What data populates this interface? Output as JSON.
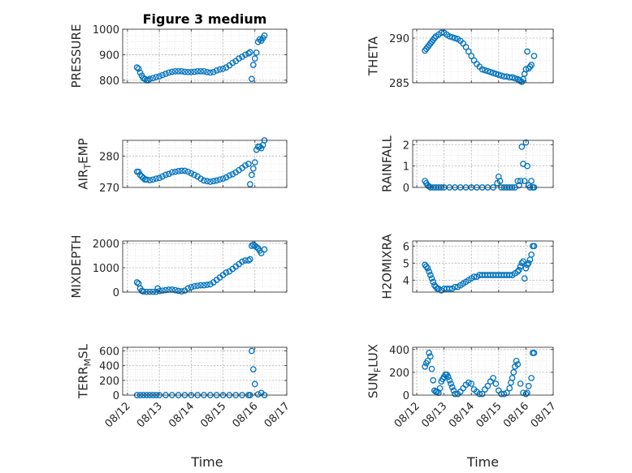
{
  "figure": {
    "title": "Figure 3 medium",
    "xlabel": "Time",
    "marker_color": "#0072BD",
    "x_ticks": [
      "08/12",
      "08/13",
      "08/14",
      "08/15",
      "08/16",
      "08/17"
    ]
  },
  "chart_data": [
    {
      "type": "scatter",
      "ylabel": "PRESSURE",
      "ylim": [
        790,
        1000
      ],
      "yticks": [
        800,
        900,
        1000
      ],
      "grid": true,
      "x": [
        12.3,
        12.35,
        12.4,
        12.45,
        12.5,
        12.55,
        12.6,
        12.65,
        12.7,
        12.8,
        12.9,
        13.0,
        13.1,
        13.2,
        13.3,
        13.4,
        13.5,
        13.6,
        13.7,
        13.8,
        13.9,
        14.0,
        14.1,
        14.2,
        14.3,
        14.4,
        14.5,
        14.6,
        14.7,
        14.8,
        14.9,
        15.0,
        15.1,
        15.2,
        15.3,
        15.4,
        15.5,
        15.6,
        15.7,
        15.8,
        15.85,
        15.9,
        15.95,
        16.0,
        16.05,
        16.1,
        16.15,
        16.2,
        16.25,
        16.3
      ],
      "y": [
        850,
        845,
        830,
        818,
        808,
        805,
        800,
        800,
        805,
        808,
        812,
        815,
        820,
        825,
        830,
        833,
        835,
        835,
        835,
        833,
        832,
        832,
        833,
        835,
        835,
        835,
        832,
        830,
        832,
        838,
        842,
        845,
        850,
        858,
        868,
        875,
        885,
        892,
        900,
        905,
        910,
        805,
        860,
        885,
        908,
        950,
        960,
        955,
        965,
        975
      ]
    },
    {
      "type": "scatter",
      "ylabel": "THETA",
      "ylim": [
        285,
        291
      ],
      "yticks": [
        285,
        290
      ],
      "grid": true,
      "x": [
        12.3,
        12.35,
        12.4,
        12.45,
        12.5,
        12.55,
        12.6,
        12.65,
        12.7,
        12.8,
        12.9,
        13.0,
        13.1,
        13.2,
        13.3,
        13.4,
        13.5,
        13.6,
        13.7,
        13.8,
        13.9,
        14.0,
        14.1,
        14.2,
        14.3,
        14.4,
        14.5,
        14.6,
        14.7,
        14.8,
        14.9,
        15.0,
        15.1,
        15.2,
        15.3,
        15.4,
        15.5,
        15.6,
        15.7,
        15.75,
        15.8,
        15.85,
        15.9,
        15.95,
        16.0,
        16.05,
        16.1,
        16.15,
        16.2,
        16.3
      ],
      "y": [
        288.6,
        288.8,
        289.0,
        289.2,
        289.4,
        289.6,
        289.8,
        290.0,
        290.2,
        290.4,
        290.6,
        290.6,
        290.4,
        290.2,
        290.1,
        290.0,
        289.9,
        289.7,
        289.4,
        289.0,
        288.5,
        288.0,
        287.5,
        287.1,
        286.8,
        286.5,
        286.4,
        286.3,
        286.2,
        286.1,
        286.0,
        285.9,
        285.8,
        285.7,
        285.7,
        285.6,
        285.6,
        285.5,
        285.4,
        285.3,
        285.2,
        285.1,
        285.4,
        286.0,
        286.5,
        288.5,
        286.6,
        286.8,
        287.0,
        288.0
      ]
    },
    {
      "type": "scatter",
      "ylabel": "AIR_TEMP",
      "ylim": [
        270,
        285
      ],
      "yticks": [
        270,
        280
      ],
      "grid": true,
      "x": [
        12.3,
        12.35,
        12.4,
        12.45,
        12.5,
        12.55,
        12.6,
        12.7,
        12.8,
        12.9,
        13.0,
        13.1,
        13.2,
        13.3,
        13.4,
        13.5,
        13.6,
        13.7,
        13.8,
        13.9,
        14.0,
        14.1,
        14.2,
        14.3,
        14.4,
        14.5,
        14.6,
        14.7,
        14.8,
        14.9,
        15.0,
        15.1,
        15.2,
        15.3,
        15.4,
        15.5,
        15.6,
        15.7,
        15.8,
        15.85,
        15.9,
        15.95,
        16.0,
        16.05,
        16.1,
        16.15,
        16.2,
        16.25,
        16.3
      ],
      "y": [
        275,
        275,
        274,
        273.5,
        273,
        272.5,
        272.5,
        272.3,
        272.5,
        272.8,
        273,
        273.5,
        274,
        274.3,
        274.8,
        275,
        275.2,
        275.3,
        275.3,
        275,
        274.5,
        274,
        273.5,
        272.8,
        272.2,
        272,
        271.8,
        272,
        272.2,
        272.5,
        272.8,
        273.2,
        273.8,
        274.2,
        274.8,
        275.5,
        276.2,
        277,
        277.5,
        271,
        274,
        276,
        278,
        282,
        283,
        283,
        282.5,
        283.5,
        285
      ]
    },
    {
      "type": "scatter",
      "ylabel": "RAINFALL",
      "ylim": [
        0,
        2.2
      ],
      "yticks": [
        0,
        1,
        2
      ],
      "grid": true,
      "x": [
        12.3,
        12.35,
        12.4,
        12.45,
        12.5,
        12.6,
        12.7,
        12.8,
        12.9,
        13.0,
        13.2,
        13.4,
        13.6,
        13.8,
        14.0,
        14.2,
        14.4,
        14.6,
        14.8,
        14.95,
        15.0,
        15.05,
        15.1,
        15.2,
        15.3,
        15.4,
        15.5,
        15.6,
        15.7,
        15.75,
        15.8,
        15.85,
        15.9,
        15.95,
        16.0,
        16.05,
        16.1,
        16.15,
        16.2,
        16.25,
        16.3
      ],
      "y": [
        0.3,
        0.2,
        0.1,
        0.05,
        0,
        0,
        0,
        0,
        0,
        0,
        0,
        0,
        0,
        0,
        0,
        0,
        0,
        0,
        0,
        0.2,
        0.5,
        0.3,
        0,
        0,
        0,
        0,
        0,
        0,
        0.3,
        0.1,
        0.3,
        1.9,
        1.1,
        0.3,
        2.1,
        1.0,
        0.1,
        0,
        0.3,
        0,
        0
      ]
    },
    {
      "type": "scatter",
      "ylabel": "MIXDEPTH",
      "ylim": [
        0,
        2100
      ],
      "yticks": [
        0,
        1000,
        2000
      ],
      "grid": true,
      "x": [
        12.3,
        12.35,
        12.4,
        12.45,
        12.5,
        12.6,
        12.7,
        12.8,
        12.9,
        12.95,
        13.0,
        13.1,
        13.2,
        13.3,
        13.4,
        13.5,
        13.6,
        13.7,
        13.8,
        13.9,
        14.0,
        14.1,
        14.2,
        14.3,
        14.4,
        14.5,
        14.6,
        14.7,
        14.8,
        14.9,
        15.0,
        15.1,
        15.2,
        15.3,
        15.4,
        15.5,
        15.6,
        15.7,
        15.8,
        15.85,
        15.9,
        15.95,
        16.0,
        16.05,
        16.1,
        16.15,
        16.2,
        16.3
      ],
      "y": [
        400,
        350,
        150,
        50,
        20,
        10,
        10,
        10,
        10,
        150,
        40,
        60,
        80,
        100,
        100,
        80,
        50,
        30,
        60,
        150,
        200,
        240,
        260,
        280,
        280,
        300,
        320,
        400,
        500,
        600,
        700,
        800,
        850,
        950,
        1050,
        1150,
        1250,
        1300,
        1300,
        1350,
        1900,
        1950,
        1900,
        1850,
        1800,
        1700,
        1600,
        1750
      ]
    },
    {
      "type": "scatter",
      "ylabel": "H2OMIXRA",
      "ylim": [
        3.3,
        6.3
      ],
      "yticks": [
        4,
        5,
        6
      ],
      "grid": true,
      "x": [
        12.3,
        12.35,
        12.4,
        12.45,
        12.5,
        12.55,
        12.6,
        12.65,
        12.7,
        12.75,
        12.8,
        12.9,
        13.0,
        13.1,
        13.2,
        13.3,
        13.4,
        13.5,
        13.6,
        13.7,
        13.8,
        13.9,
        14.0,
        14.1,
        14.2,
        14.3,
        14.4,
        14.5,
        14.6,
        14.7,
        14.8,
        14.9,
        15.0,
        15.1,
        15.2,
        15.3,
        15.4,
        15.5,
        15.6,
        15.7,
        15.75,
        15.8,
        15.85,
        15.9,
        15.95,
        16.0,
        16.05,
        16.1,
        16.15,
        16.2,
        16.25,
        16.3
      ],
      "y": [
        4.9,
        4.8,
        4.7,
        4.5,
        4.3,
        4.1,
        3.9,
        3.7,
        3.6,
        3.5,
        3.5,
        3.4,
        3.5,
        3.5,
        3.5,
        3.5,
        3.6,
        3.6,
        3.7,
        3.8,
        3.9,
        4.0,
        4.1,
        4.2,
        4.2,
        4.3,
        4.3,
        4.3,
        4.3,
        4.3,
        4.3,
        4.3,
        4.3,
        4.3,
        4.3,
        4.3,
        4.3,
        4.3,
        4.4,
        4.5,
        4.6,
        4.8,
        5.0,
        5.1,
        4.1,
        4.7,
        4.9,
        5.0,
        5.2,
        5.5,
        6.0,
        6.0
      ]
    },
    {
      "type": "scatter",
      "ylabel": "TERR_MSL",
      "ylim": [
        0,
        650
      ],
      "yticks": [
        0,
        200,
        400,
        600
      ],
      "grid": true,
      "x": [
        12.3,
        12.4,
        12.5,
        12.6,
        12.7,
        12.8,
        12.9,
        13.0,
        13.2,
        13.4,
        13.6,
        13.8,
        14.0,
        14.2,
        14.4,
        14.6,
        14.8,
        15.0,
        15.2,
        15.4,
        15.6,
        15.8,
        15.85,
        15.9,
        15.95,
        16.0,
        16.1,
        16.2,
        16.3
      ],
      "y": [
        0,
        0,
        0,
        0,
        0,
        0,
        0,
        0,
        0,
        0,
        0,
        0,
        0,
        0,
        0,
        0,
        0,
        0,
        0,
        0,
        0,
        0,
        0,
        600,
        350,
        150,
        10,
        30,
        0
      ]
    },
    {
      "type": "scatter",
      "ylabel": "SUN_FLUX",
      "ylim": [
        0,
        420
      ],
      "yticks": [
        0,
        200,
        400
      ],
      "grid": true,
      "x": [
        12.3,
        12.35,
        12.4,
        12.45,
        12.5,
        12.55,
        12.6,
        12.65,
        12.7,
        12.75,
        12.8,
        12.85,
        12.9,
        12.95,
        13.0,
        13.05,
        13.1,
        13.15,
        13.2,
        13.25,
        13.3,
        13.35,
        13.4,
        13.5,
        13.6,
        13.7,
        13.8,
        13.9,
        14.0,
        14.1,
        14.2,
        14.3,
        14.4,
        14.5,
        14.6,
        14.7,
        14.8,
        14.9,
        15.0,
        15.1,
        15.2,
        15.3,
        15.4,
        15.45,
        15.5,
        15.55,
        15.6,
        15.65,
        15.7,
        15.8,
        15.9,
        16.0,
        16.05,
        16.1,
        16.2,
        16.25,
        16.3
      ],
      "y": [
        250,
        280,
        300,
        370,
        340,
        230,
        130,
        40,
        30,
        30,
        20,
        60,
        120,
        140,
        160,
        180,
        180,
        160,
        130,
        100,
        70,
        40,
        10,
        10,
        30,
        60,
        90,
        110,
        100,
        50,
        30,
        10,
        10,
        50,
        80,
        120,
        150,
        100,
        40,
        10,
        10,
        20,
        60,
        110,
        150,
        200,
        250,
        300,
        270,
        100,
        20,
        10,
        20,
        80,
        150,
        370,
        370
      ]
    }
  ]
}
